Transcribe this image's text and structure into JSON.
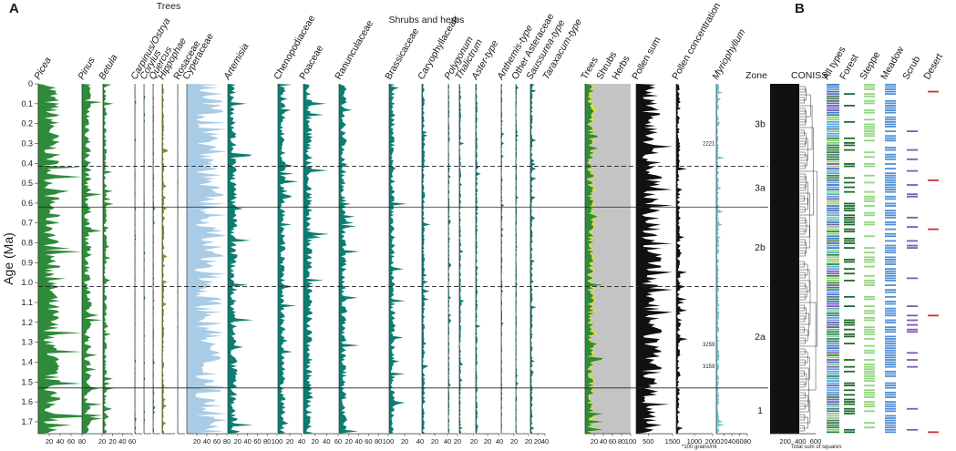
{
  "figure": {
    "panel_a": "A",
    "panel_b": "B"
  },
  "chart_data": [
    {
      "type": "area",
      "panel": "A",
      "ylabel": "Age (Ma)",
      "yticks": [
        "0",
        "0.1",
        "0.2",
        "0.3",
        "0.4",
        "0.5",
        "0.6",
        "0.7",
        "0.8",
        "0.9",
        "1.0",
        "1.1",
        "1.2",
        "1.3",
        "1.4",
        "1.5",
        "1.6",
        "1.7"
      ],
      "ylim": [
        0,
        1.76
      ],
      "group_labels": [
        "Trees",
        "Shrubs and herbs"
      ],
      "columns": [
        {
          "name": "Picea",
          "italic": true,
          "color": "#2e8b3a",
          "mean": 25,
          "max": 80,
          "ticks": [
            "20",
            "40",
            "60",
            "80"
          ]
        },
        {
          "name": "Pinus",
          "italic": true,
          "color": "#2e8b3a",
          "mean": 6,
          "max": 20,
          "ticks": [
            "20"
          ]
        },
        {
          "name": "Betula",
          "italic": true,
          "color": "#2e8b3a",
          "mean": 5,
          "max": 60,
          "ticks": [
            "20",
            "40",
            "60"
          ]
        },
        {
          "name": "Carpinus/Ostrya",
          "italic": true,
          "color": "#2e8b3a",
          "mean": 1,
          "max": 20,
          "ticks": []
        },
        {
          "name": "Corylus",
          "italic": true,
          "color": "#2e8b3a",
          "mean": 1,
          "max": 20,
          "ticks": []
        },
        {
          "name": "Quercus",
          "italic": true,
          "color": "#2e8b3a",
          "mean": 1.5,
          "max": 20,
          "ticks": []
        },
        {
          "name": "Hippophae",
          "italic": true,
          "color": "#8f8f1e",
          "mean": 2,
          "max": 20,
          "ticks": []
        },
        {
          "name": "Rosaceae",
          "italic": false,
          "color": "#2e8b3a",
          "mean": 0.5,
          "max": 20,
          "ticks": []
        },
        {
          "name": "Cyperaceae",
          "italic": false,
          "color": "#a9cce6",
          "mean": 45,
          "max": 80,
          "ticks": [
            "20",
            "40",
            "60",
            "80"
          ]
        },
        {
          "name": "Artemisia",
          "italic": true,
          "color": "#0b7e73",
          "mean": 12,
          "max": 100,
          "ticks": [
            "20",
            "40",
            "60",
            "80",
            "100"
          ]
        },
        {
          "name": "Chenopodiaceae",
          "italic": false,
          "color": "#0b7e73",
          "mean": 8,
          "max": 40,
          "ticks": [
            "20",
            "40"
          ]
        },
        {
          "name": "Poaceae",
          "italic": false,
          "color": "#0b7e73",
          "mean": 10,
          "max": 60,
          "ticks": [
            "20",
            "40",
            "60"
          ]
        },
        {
          "name": "Ranunculaceae",
          "italic": false,
          "color": "#0b7e73",
          "mean": 10,
          "max": 100,
          "ticks": [
            "20",
            "40",
            "60",
            "80",
            "100"
          ]
        },
        {
          "name": "Brassicaceae",
          "italic": false,
          "color": "#0b7e73",
          "mean": 5,
          "max": 40,
          "ticks": [
            "20",
            "40"
          ]
        },
        {
          "name": "Caryophyllaceae",
          "italic": false,
          "color": "#0b7e73",
          "mean": 3,
          "max": 40,
          "ticks": [
            "20",
            "40"
          ]
        },
        {
          "name": "Polygonum",
          "italic": true,
          "color": "#0b7e73",
          "mean": 1.5,
          "max": 20,
          "ticks": [
            "20"
          ]
        },
        {
          "name": "Thalictrum",
          "italic": true,
          "color": "#0b7e73",
          "mean": 1.5,
          "max": 20,
          "ticks": [
            "20"
          ]
        },
        {
          "name": "Aster-type",
          "italic": true,
          "color": "#0b7e73",
          "mean": 2,
          "max": 40,
          "ticks": [
            "20",
            "40"
          ]
        },
        {
          "name": "Anthemis-type",
          "italic": true,
          "color": "#0b7e73",
          "mean": 1,
          "max": 20,
          "ticks": [
            "20"
          ]
        },
        {
          "name": "Other Asteraceae",
          "italic": false,
          "color": "#0b7e73",
          "mean": 1,
          "max": 20,
          "ticks": [
            "20"
          ]
        },
        {
          "name": "Saussurea-type",
          "italic": true,
          "color": "#0b7e73",
          "mean": 4,
          "max": 40,
          "ticks": [
            "20",
            "40"
          ]
        },
        {
          "name": "Taraxacum-type",
          "italic": true,
          "color": "#0b7e73",
          "mean": 0,
          "max": 40,
          "ticks": []
        }
      ],
      "summary": {
        "labels": [
          "Trees",
          "Shrubs",
          "Herbs"
        ],
        "colors": [
          "#2e8b3a",
          "#e0e81e",
          "#c4c4c4"
        ],
        "ticks": [
          "20",
          "40",
          "60",
          "80",
          "100"
        ]
      },
      "pollen_sum": {
        "label": "Pollen sum",
        "color": "#111111",
        "mean": 650,
        "max": 1500,
        "ticks": [
          "500",
          "1500"
        ]
      },
      "pollen_concentration": {
        "label": "Pollen concentration",
        "color": "#111111",
        "mean": 150,
        "max": 2000,
        "ticks": [
          "1000",
          "2000"
        ],
        "unit": "*100 grains/ml",
        "annotations": [
          {
            "age": 0.3,
            "text": "2221"
          },
          {
            "age": 1.31,
            "text": "3259"
          },
          {
            "age": 1.42,
            "text": "3159"
          }
        ]
      },
      "myriophyllum": {
        "label": "Myriophyllum",
        "italic": true,
        "color": "#6fc7ce",
        "mean": 5,
        "max": 80,
        "ticks": [
          "20",
          "40",
          "60",
          "80"
        ]
      },
      "zones": {
        "title": "Zone",
        "boundaries": [
          {
            "age": 0.415,
            "style": "dashed"
          },
          {
            "age": 0.62,
            "style": "solid"
          },
          {
            "age": 1.02,
            "style": "dashed"
          },
          {
            "age": 1.53,
            "style": "solid"
          }
        ],
        "labels": [
          {
            "text": "3b",
            "age": 0.2
          },
          {
            "text": "3a",
            "age": 0.52
          },
          {
            "text": "2b",
            "age": 0.82
          },
          {
            "text": "2a",
            "age": 1.27
          },
          {
            "text": "1",
            "age": 1.64
          }
        ]
      },
      "coniss": {
        "title": "CONISS",
        "xticks": [
          "200",
          "400",
          "600"
        ],
        "xlabel": "Total sum of  squares"
      }
    },
    {
      "type": "heatmap",
      "panel": "B",
      "columns": [
        {
          "name": "All types",
          "palette": [
            "#3f7fc0",
            "#5aa9e0",
            "#2e8b3a",
            "#8fd37a",
            "#7d5bb5"
          ]
        },
        {
          "name": "Forest",
          "palette": [
            "#1f6a2e"
          ]
        },
        {
          "name": "Steppe",
          "palette": [
            "#92d67f"
          ]
        },
        {
          "name": "Meadow",
          "palette": [
            "#4f8fd6"
          ]
        },
        {
          "name": "Scrub",
          "palette": [
            "#7d5bb5"
          ]
        },
        {
          "name": "Desert",
          "palette": [
            "#d43030"
          ]
        }
      ]
    }
  ]
}
